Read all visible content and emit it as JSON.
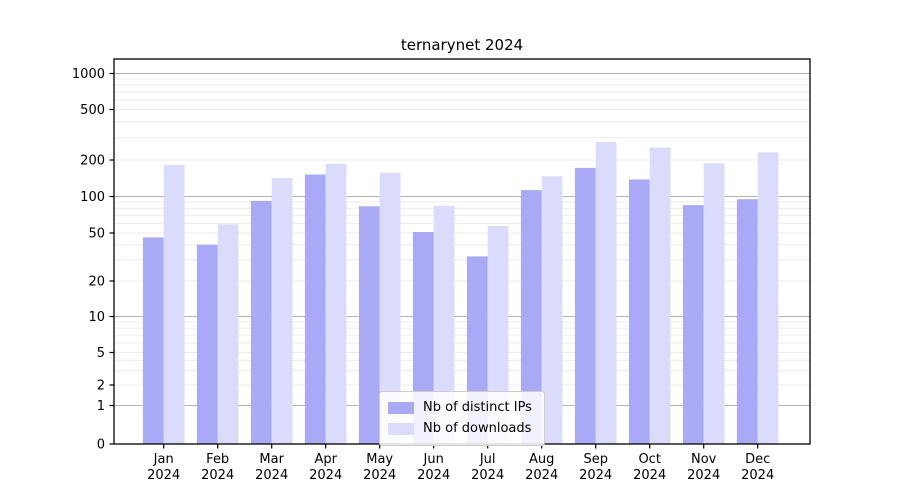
{
  "chart_data": {
    "type": "bar",
    "title": "ternarynet 2024",
    "categories": [
      "Jan 2024",
      "Feb 2024",
      "Mar 2024",
      "Apr 2024",
      "May 2024",
      "Jun 2024",
      "Jul 2024",
      "Aug 2024",
      "Sep 2024",
      "Oct 2024",
      "Nov 2024",
      "Dec 2024"
    ],
    "series": [
      {
        "name": "Nb of distinct IPs",
        "color": "#a9a9f5",
        "values": [
          46,
          40,
          92,
          152,
          83,
          51,
          32,
          113,
          172,
          138,
          85,
          95
        ]
      },
      {
        "name": "Nb of downloads",
        "color": "#dbdbfb",
        "values": [
          182,
          59,
          142,
          186,
          157,
          84,
          57,
          147,
          278,
          251,
          188,
          230
        ]
      }
    ],
    "yaxis": {
      "scale": "asinh-log",
      "ticks": [
        0,
        1,
        2,
        5,
        10,
        20,
        50,
        100,
        200,
        500,
        1000
      ],
      "ylim": [
        0,
        1300
      ],
      "major_gridlines": [
        1,
        10,
        100,
        1000
      ]
    },
    "legend": {
      "position": "lower center"
    },
    "grid": true,
    "colors": {
      "background": "#ffffff",
      "spine": "#000000",
      "grid_major": "#b3b3b3",
      "grid_minor": "#ececec",
      "text": "#000000"
    }
  }
}
